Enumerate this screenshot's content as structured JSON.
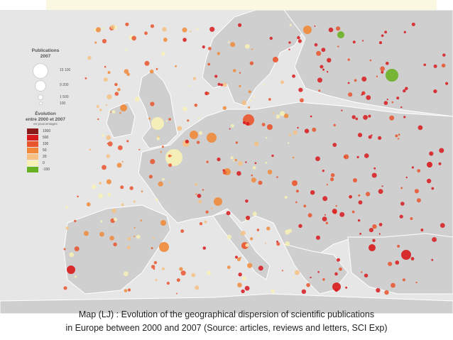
{
  "legend": {
    "size_title_line1": "Publications",
    "size_title_line2": "2007",
    "size_values": [
      "15 100",
      "9 200",
      "1 500",
      "100"
    ],
    "color_title_line1": "Évolution",
    "color_title_line2": "entre 2000 et 2007",
    "color_title_line3": "en pourcentages",
    "color_classes": [
      {
        "label": "1000",
        "color": "#8b1a1a"
      },
      {
        "label": "500",
        "color": "#d7191c"
      },
      {
        "label": "100",
        "color": "#e9542c"
      },
      {
        "label": "50",
        "color": "#f08a3a"
      },
      {
        "label": "20",
        "color": "#f6c183"
      },
      {
        "label": "0",
        "color": "#f7f1b5"
      },
      {
        "label": "-100",
        "color": "#6ab023"
      }
    ]
  },
  "caption": {
    "line1": "Map (LJ) : Evolution of the geographical dispersion of scientific publications",
    "line2": "in Europe between 2000 and 2007 (Source: articles, reviews and letters, SCI Exp)"
  },
  "colors": {
    "sea": "#e6e6e6",
    "land": "#cfcfcf",
    "border": "#ffffff"
  }
}
